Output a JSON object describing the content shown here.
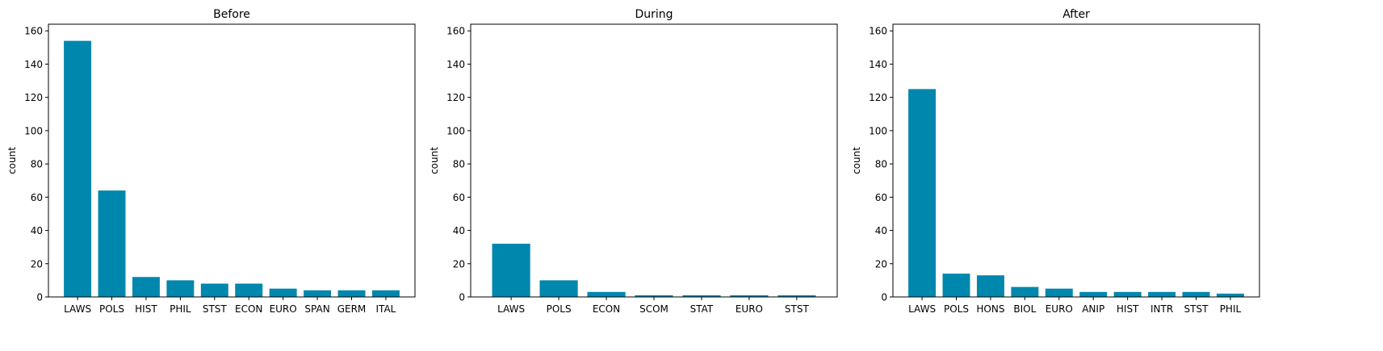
{
  "chart_data": [
    {
      "type": "bar",
      "title": "Before",
      "ylabel": "count",
      "xlabel": "",
      "ylim": [
        0,
        164
      ],
      "yticks": [
        0,
        20,
        40,
        60,
        80,
        100,
        120,
        140,
        160
      ],
      "categories": [
        "LAWS",
        "POLS",
        "HIST",
        "PHIL",
        "STST",
        "ECON",
        "EURO",
        "SPAN",
        "GERM",
        "ITAL"
      ],
      "values": [
        154,
        64,
        12,
        10,
        8,
        8,
        5,
        4,
        4,
        4
      ],
      "color": "#0087ae"
    },
    {
      "type": "bar",
      "title": "During",
      "ylabel": "count",
      "xlabel": "",
      "ylim": [
        0,
        164
      ],
      "yticks": [
        0,
        20,
        40,
        60,
        80,
        100,
        120,
        140,
        160
      ],
      "categories": [
        "LAWS",
        "POLS",
        "ECON",
        "SCOM",
        "STAT",
        "EURO",
        "STST"
      ],
      "values": [
        32,
        10,
        3,
        1,
        1,
        1,
        1
      ],
      "color": "#0087ae"
    },
    {
      "type": "bar",
      "title": "After",
      "ylabel": "count",
      "xlabel": "",
      "ylim": [
        0,
        164
      ],
      "yticks": [
        0,
        20,
        40,
        60,
        80,
        100,
        120,
        140,
        160
      ],
      "categories": [
        "LAWS",
        "POLS",
        "HONS",
        "BIOL",
        "EURO",
        "ANIP",
        "HIST",
        "INTR",
        "STST",
        "PHIL"
      ],
      "values": [
        125,
        14,
        13,
        6,
        5,
        3,
        3,
        3,
        3,
        2
      ],
      "color": "#0087ae"
    }
  ]
}
